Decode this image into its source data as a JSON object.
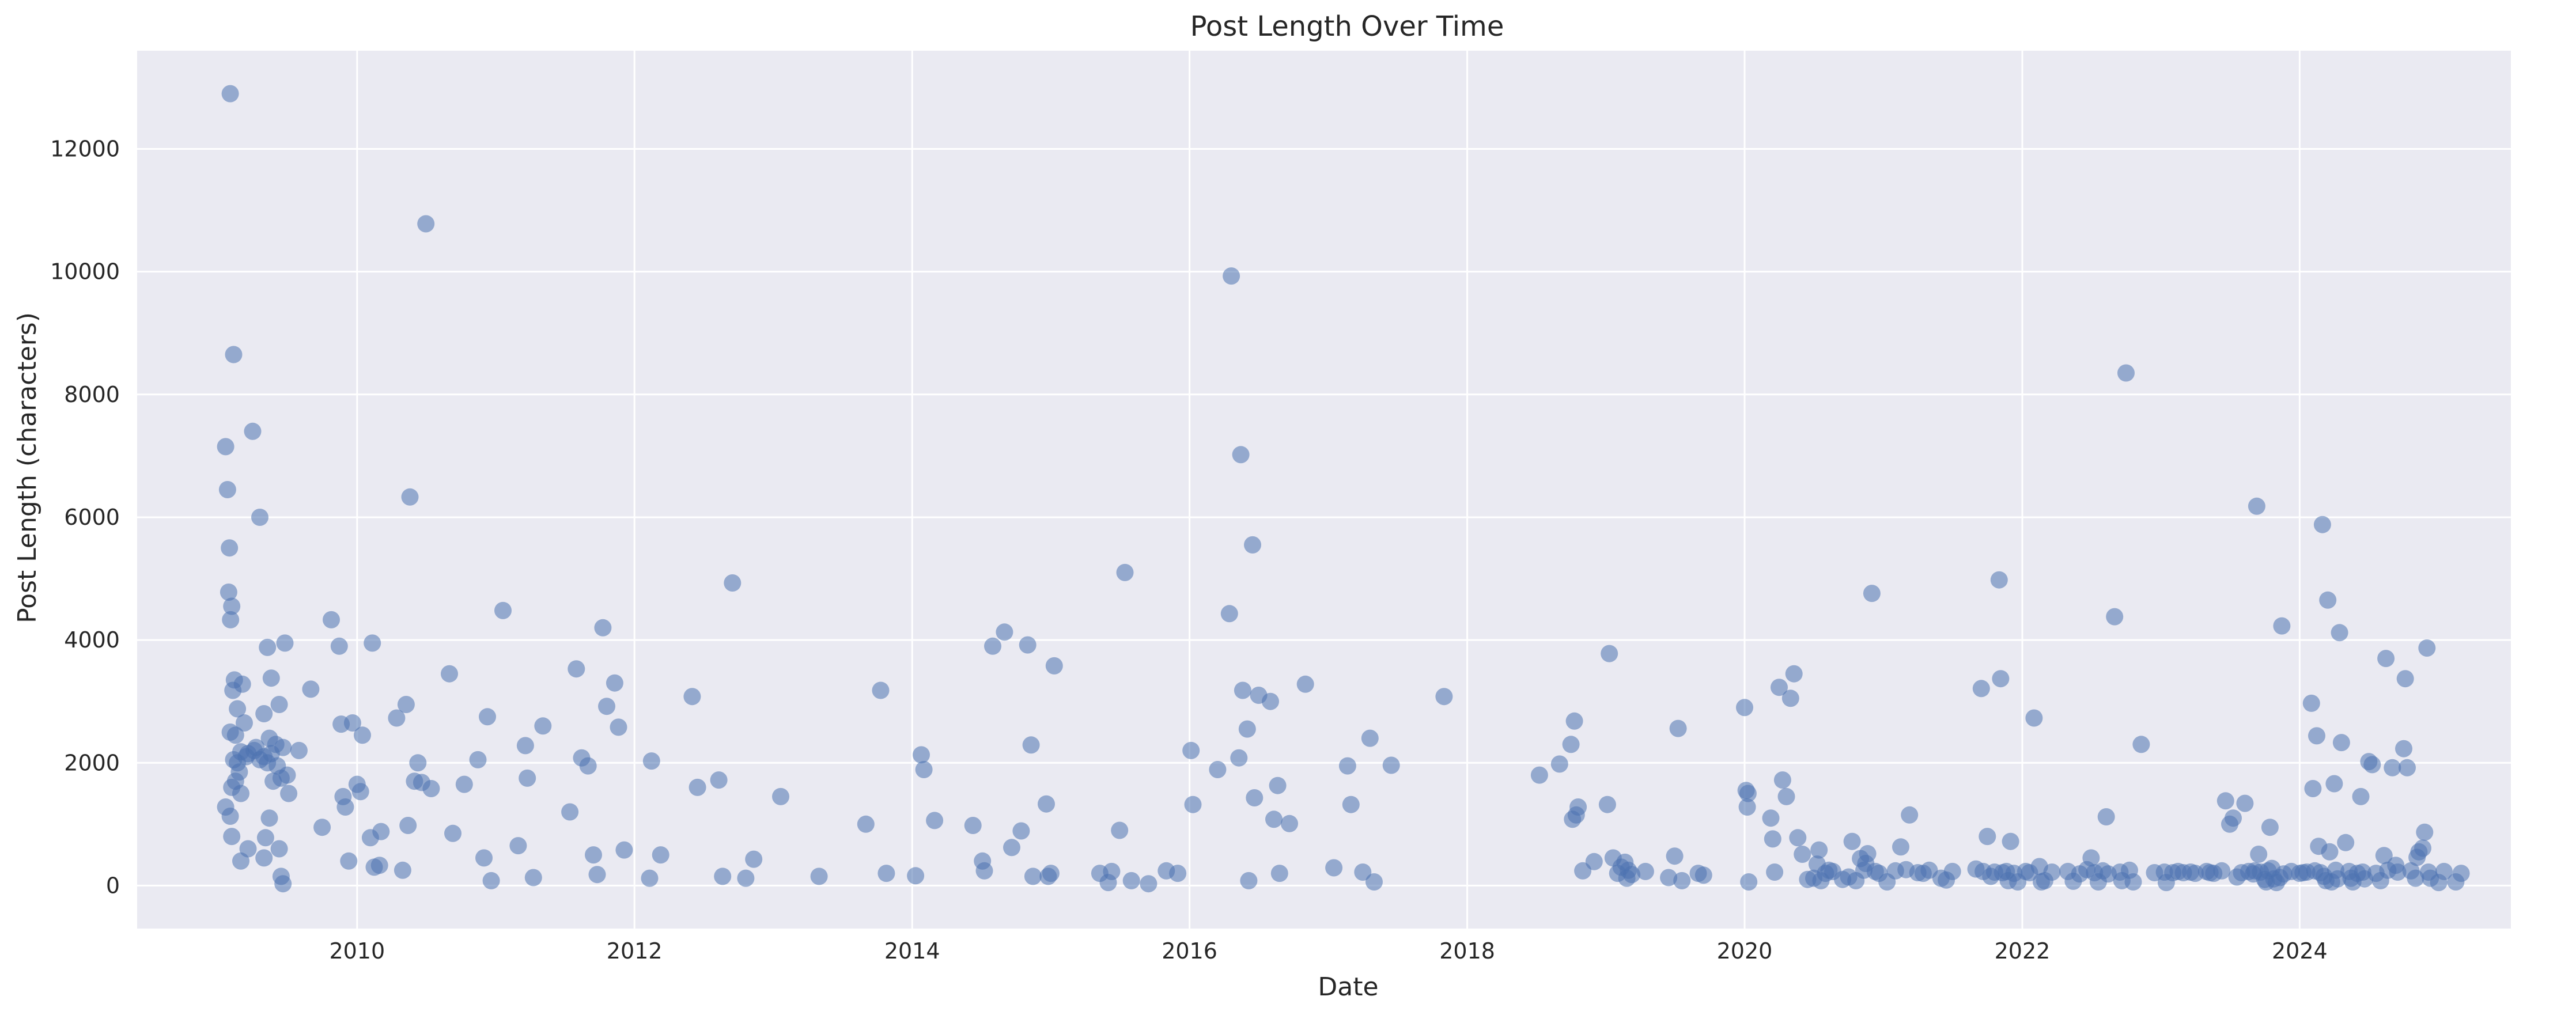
{
  "chart_data": {
    "type": "scatter",
    "title": "Post Length Over Time",
    "xlabel": "Date",
    "ylabel": "Post Length (characters)",
    "x_axis": "date",
    "xlim": [
      "2008-06-01",
      "2025-07-10"
    ],
    "ylim": [
      -700,
      13600
    ],
    "x_ticks": [
      "2010",
      "2012",
      "2014",
      "2016",
      "2018",
      "2020",
      "2022",
      "2024"
    ],
    "y_ticks": [
      0,
      2000,
      4000,
      6000,
      8000,
      10000,
      12000
    ],
    "grid": true,
    "legend": "none",
    "colors": {
      "point": "#4c72b0",
      "background": "#eaeaf2",
      "grid": "#ffffff"
    },
    "marker_alpha": 0.55,
    "points": [
      [
        "2009-02-01",
        12900
      ],
      [
        "2009-01-20",
        7150
      ],
      [
        "2009-01-25",
        6450
      ],
      [
        "2009-02-10",
        8650
      ],
      [
        "2009-04-01",
        7400
      ],
      [
        "2009-01-30",
        5500
      ],
      [
        "2009-04-20",
        6000
      ],
      [
        "2009-01-28",
        4780
      ],
      [
        "2009-02-05",
        4550
      ],
      [
        "2009-02-02",
        4330
      ],
      [
        "2009-02-12",
        3350
      ],
      [
        "2009-02-08",
        3180
      ],
      [
        "2009-03-05",
        3280
      ],
      [
        "2009-02-20",
        2880
      ],
      [
        "2009-03-10",
        2650
      ],
      [
        "2009-02-01",
        2500
      ],
      [
        "2009-02-15",
        2450
      ],
      [
        "2009-03-20",
        2150
      ],
      [
        "2009-03-01",
        2180
      ],
      [
        "2009-04-10",
        2250
      ],
      [
        "2009-02-10",
        2050
      ],
      [
        "2009-02-20",
        2000
      ],
      [
        "2009-03-15",
        2100
      ],
      [
        "2009-04-05",
        2200
      ],
      [
        "2009-04-20",
        2050
      ],
      [
        "2009-05-01",
        2100
      ],
      [
        "2009-02-25",
        1850
      ],
      [
        "2009-02-15",
        1700
      ],
      [
        "2009-02-05",
        1600
      ],
      [
        "2009-03-01",
        1500
      ],
      [
        "2009-01-20",
        1280
      ],
      [
        "2009-02-01",
        1130
      ],
      [
        "2009-02-05",
        800
      ],
      [
        "2009-03-20",
        600
      ],
      [
        "2009-03-01",
        400
      ],
      [
        "2009-05-10",
        3880
      ],
      [
        "2009-05-20",
        3380
      ],
      [
        "2009-06-10",
        2950
      ],
      [
        "2009-05-01",
        2800
      ],
      [
        "2009-05-15",
        2400
      ],
      [
        "2009-06-01",
        2300
      ],
      [
        "2009-06-20",
        2250
      ],
      [
        "2009-05-20",
        2150
      ],
      [
        "2009-05-10",
        2000
      ],
      [
        "2009-06-05",
        1950
      ],
      [
        "2009-07-01",
        1800
      ],
      [
        "2009-06-15",
        1750
      ],
      [
        "2009-05-25",
        1700
      ],
      [
        "2009-07-05",
        1500
      ],
      [
        "2009-05-15",
        1100
      ],
      [
        "2009-05-05",
        780
      ],
      [
        "2009-05-01",
        450
      ],
      [
        "2009-06-10",
        600
      ],
      [
        "2009-06-15",
        150
      ],
      [
        "2009-06-20",
        30
      ],
      [
        "2009-06-25",
        3950
      ],
      [
        "2009-08-01",
        2200
      ],
      [
        "2009-09-01",
        3200
      ],
      [
        "2009-10-01",
        950
      ],
      [
        "2009-10-25",
        4330
      ],
      [
        "2009-11-15",
        3900
      ],
      [
        "2009-11-20",
        2630
      ],
      [
        "2009-11-25",
        1450
      ],
      [
        "2009-12-01",
        1280
      ],
      [
        "2009-12-10",
        400
      ],
      [
        "2009-12-20",
        2650
      ],
      [
        "2010-01-01",
        1650
      ],
      [
        "2010-01-10",
        1530
      ],
      [
        "2010-01-15",
        2450
      ],
      [
        "2010-02-10",
        3950
      ],
      [
        "2010-02-05",
        780
      ],
      [
        "2010-02-15",
        300
      ],
      [
        "2010-03-01",
        330
      ],
      [
        "2010-03-05",
        880
      ],
      [
        "2010-04-15",
        2730
      ],
      [
        "2010-05-01",
        250
      ],
      [
        "2010-05-10",
        2950
      ],
      [
        "2010-05-15",
        980
      ],
      [
        "2010-05-20",
        6330
      ],
      [
        "2010-06-01",
        1700
      ],
      [
        "2010-06-10",
        2000
      ],
      [
        "2010-06-20",
        1680
      ],
      [
        "2010-07-01",
        10780
      ],
      [
        "2010-07-15",
        1580
      ],
      [
        "2010-09-01",
        3450
      ],
      [
        "2010-09-10",
        850
      ],
      [
        "2010-10-10",
        1650
      ],
      [
        "2010-11-15",
        2050
      ],
      [
        "2010-12-01",
        450
      ],
      [
        "2010-12-10",
        2750
      ],
      [
        "2010-12-20",
        80
      ],
      [
        "2011-01-20",
        4480
      ],
      [
        "2011-03-01",
        650
      ],
      [
        "2011-03-20",
        2280
      ],
      [
        "2011-03-25",
        1750
      ],
      [
        "2011-04-10",
        130
      ],
      [
        "2011-05-05",
        2600
      ],
      [
        "2011-07-15",
        1200
      ],
      [
        "2011-08-01",
        3530
      ],
      [
        "2011-08-15",
        2080
      ],
      [
        "2011-09-01",
        1950
      ],
      [
        "2011-09-15",
        500
      ],
      [
        "2011-09-25",
        180
      ],
      [
        "2011-10-10",
        4200
      ],
      [
        "2011-10-20",
        2920
      ],
      [
        "2011-11-10",
        3300
      ],
      [
        "2011-11-20",
        2580
      ],
      [
        "2011-12-05",
        580
      ],
      [
        "2012-02-15",
        2030
      ],
      [
        "2012-02-10",
        120
      ],
      [
        "2012-03-10",
        500
      ],
      [
        "2012-06-01",
        3080
      ],
      [
        "2012-06-15",
        1600
      ],
      [
        "2012-08-10",
        1720
      ],
      [
        "2012-08-20",
        150
      ],
      [
        "2012-09-15",
        4930
      ],
      [
        "2012-10-20",
        120
      ],
      [
        "2012-11-10",
        430
      ],
      [
        "2013-01-20",
        1450
      ],
      [
        "2013-05-01",
        150
      ],
      [
        "2013-09-01",
        1000
      ],
      [
        "2013-10-10",
        3180
      ],
      [
        "2013-10-25",
        200
      ],
      [
        "2014-01-10",
        160
      ],
      [
        "2014-01-25",
        2130
      ],
      [
        "2014-02-01",
        1890
      ],
      [
        "2014-03-01",
        1060
      ],
      [
        "2014-06-10",
        980
      ],
      [
        "2014-07-10",
        240
      ],
      [
        "2014-07-05",
        400
      ],
      [
        "2014-08-01",
        3900
      ],
      [
        "2014-09-01",
        4130
      ],
      [
        "2014-09-20",
        620
      ],
      [
        "2014-10-15",
        890
      ],
      [
        "2014-11-01",
        3920
      ],
      [
        "2014-11-10",
        2290
      ],
      [
        "2014-11-15",
        150
      ],
      [
        "2014-12-20",
        1330
      ],
      [
        "2014-12-25",
        150
      ],
      [
        "2015-01-01",
        200
      ],
      [
        "2015-01-10",
        3580
      ],
      [
        "2015-05-10",
        200
      ],
      [
        "2015-06-10",
        230
      ],
      [
        "2015-06-01",
        50
      ],
      [
        "2015-07-01",
        900
      ],
      [
        "2015-07-15",
        5100
      ],
      [
        "2015-08-01",
        80
      ],
      [
        "2015-09-15",
        30
      ],
      [
        "2015-11-01",
        240
      ],
      [
        "2015-12-01",
        200
      ],
      [
        "2016-01-05",
        2200
      ],
      [
        "2016-01-10",
        1320
      ],
      [
        "2016-03-15",
        1890
      ],
      [
        "2016-04-20",
        9930
      ],
      [
        "2016-04-15",
        4430
      ],
      [
        "2016-05-15",
        7020
      ],
      [
        "2016-05-20",
        3180
      ],
      [
        "2016-05-10",
        2080
      ],
      [
        "2016-06-01",
        2550
      ],
      [
        "2016-06-05",
        80
      ],
      [
        "2016-06-15",
        5550
      ],
      [
        "2016-06-20",
        1430
      ],
      [
        "2016-07-01",
        3100
      ],
      [
        "2016-08-01",
        3000
      ],
      [
        "2016-08-10",
        1080
      ],
      [
        "2016-08-20",
        1630
      ],
      [
        "2016-08-25",
        200
      ],
      [
        "2016-09-20",
        1010
      ],
      [
        "2016-11-01",
        3280
      ],
      [
        "2017-01-15",
        290
      ],
      [
        "2017-02-20",
        1950
      ],
      [
        "2017-03-01",
        1320
      ],
      [
        "2017-04-01",
        220
      ],
      [
        "2017-04-20",
        2400
      ],
      [
        "2017-05-01",
        60
      ],
      [
        "2017-06-15",
        1960
      ],
      [
        "2017-11-01",
        3080
      ],
      [
        "2018-07-10",
        1800
      ],
      [
        "2018-09-01",
        1980
      ],
      [
        "2018-10-01",
        2300
      ],
      [
        "2018-10-10",
        2680
      ],
      [
        "2018-10-20",
        1280
      ],
      [
        "2018-10-15",
        1150
      ],
      [
        "2018-10-05",
        1080
      ],
      [
        "2018-11-01",
        240
      ],
      [
        "2018-12-01",
        390
      ],
      [
        "2019-01-05",
        1320
      ],
      [
        "2019-01-10",
        3780
      ],
      [
        "2019-01-20",
        450
      ],
      [
        "2019-02-01",
        200
      ],
      [
        "2019-02-10",
        300
      ],
      [
        "2019-02-20",
        380
      ],
      [
        "2019-02-25",
        120
      ],
      [
        "2019-03-01",
        250
      ],
      [
        "2019-03-10",
        180
      ],
      [
        "2019-04-15",
        230
      ],
      [
        "2019-06-15",
        130
      ],
      [
        "2019-07-01",
        480
      ],
      [
        "2019-07-10",
        2560
      ],
      [
        "2019-07-20",
        80
      ],
      [
        "2019-09-01",
        200
      ],
      [
        "2019-09-15",
        170
      ],
      [
        "2020-01-01",
        2900
      ],
      [
        "2020-01-05",
        1550
      ],
      [
        "2020-01-10",
        1500
      ],
      [
        "2020-01-08",
        1280
      ],
      [
        "2020-01-12",
        60
      ],
      [
        "2020-03-10",
        1100
      ],
      [
        "2020-03-15",
        760
      ],
      [
        "2020-03-20",
        220
      ],
      [
        "2020-04-01",
        3230
      ],
      [
        "2020-04-10",
        1720
      ],
      [
        "2020-04-20",
        1450
      ],
      [
        "2020-05-01",
        3050
      ],
      [
        "2020-05-10",
        3450
      ],
      [
        "2020-05-20",
        780
      ],
      [
        "2020-06-01",
        510
      ],
      [
        "2020-06-15",
        100
      ],
      [
        "2020-07-01",
        120
      ],
      [
        "2020-07-10",
        350
      ],
      [
        "2020-07-15",
        580
      ],
      [
        "2020-07-20",
        80
      ],
      [
        "2020-08-01",
        200
      ],
      [
        "2020-08-10",
        250
      ],
      [
        "2020-08-20",
        230
      ],
      [
        "2020-09-15",
        100
      ],
      [
        "2020-10-01",
        140
      ],
      [
        "2020-10-10",
        720
      ],
      [
        "2020-10-20",
        80
      ],
      [
        "2020-11-01",
        440
      ],
      [
        "2020-11-10",
        250
      ],
      [
        "2020-11-15",
        360
      ],
      [
        "2020-11-20",
        520
      ],
      [
        "2020-12-01",
        4760
      ],
      [
        "2020-12-10",
        230
      ],
      [
        "2020-12-20",
        200
      ],
      [
        "2021-01-10",
        60
      ],
      [
        "2021-02-01",
        240
      ],
      [
        "2021-02-15",
        630
      ],
      [
        "2021-03-01",
        260
      ],
      [
        "2021-03-10",
        1150
      ],
      [
        "2021-04-01",
        210
      ],
      [
        "2021-04-15",
        200
      ],
      [
        "2021-05-01",
        250
      ],
      [
        "2021-06-01",
        120
      ],
      [
        "2021-06-15",
        90
      ],
      [
        "2021-07-01",
        230
      ],
      [
        "2021-09-01",
        270
      ],
      [
        "2021-09-15",
        3210
      ],
      [
        "2021-09-20",
        230
      ],
      [
        "2021-10-01",
        800
      ],
      [
        "2021-10-10",
        150
      ],
      [
        "2021-10-20",
        220
      ],
      [
        "2021-11-01",
        4980
      ],
      [
        "2021-11-05",
        3370
      ],
      [
        "2021-11-10",
        210
      ],
      [
        "2021-11-20",
        230
      ],
      [
        "2021-11-25",
        80
      ],
      [
        "2021-12-01",
        720
      ],
      [
        "2021-12-10",
        200
      ],
      [
        "2021-12-20",
        60
      ],
      [
        "2022-01-10",
        230
      ],
      [
        "2022-01-20",
        210
      ],
      [
        "2022-02-01",
        2730
      ],
      [
        "2022-02-15",
        310
      ],
      [
        "2022-02-20",
        60
      ],
      [
        "2022-03-01",
        80
      ],
      [
        "2022-03-20",
        220
      ],
      [
        "2022-05-01",
        230
      ],
      [
        "2022-05-15",
        70
      ],
      [
        "2022-06-01",
        190
      ],
      [
        "2022-06-20",
        260
      ],
      [
        "2022-07-01",
        450
      ],
      [
        "2022-07-10",
        210
      ],
      [
        "2022-07-20",
        60
      ],
      [
        "2022-08-01",
        240
      ],
      [
        "2022-08-10",
        1120
      ],
      [
        "2022-08-15",
        190
      ],
      [
        "2022-09-01",
        4380
      ],
      [
        "2022-09-15",
        220
      ],
      [
        "2022-09-20",
        80
      ],
      [
        "2022-10-01",
        8350
      ],
      [
        "2022-10-10",
        250
      ],
      [
        "2022-10-20",
        60
      ],
      [
        "2022-11-10",
        2300
      ],
      [
        "2022-12-15",
        210
      ],
      [
        "2023-01-10",
        220
      ],
      [
        "2023-01-15",
        50
      ],
      [
        "2023-02-01",
        210
      ],
      [
        "2023-02-15",
        230
      ],
      [
        "2023-03-01",
        210
      ],
      [
        "2023-03-20",
        220
      ],
      [
        "2023-04-01",
        200
      ],
      [
        "2023-05-01",
        230
      ],
      [
        "2023-05-10",
        210
      ],
      [
        "2023-05-20",
        200
      ],
      [
        "2023-06-10",
        240
      ],
      [
        "2023-06-20",
        1380
      ],
      [
        "2023-07-01",
        1000
      ],
      [
        "2023-07-10",
        1100
      ],
      [
        "2023-07-20",
        140
      ],
      [
        "2023-08-01",
        210
      ],
      [
        "2023-08-10",
        1340
      ],
      [
        "2023-08-20",
        230
      ],
      [
        "2023-09-01",
        190
      ],
      [
        "2023-09-05",
        240
      ],
      [
        "2023-09-10",
        6180
      ],
      [
        "2023-09-15",
        510
      ],
      [
        "2023-09-20",
        220
      ],
      [
        "2023-10-01",
        100
      ],
      [
        "2023-10-05",
        60
      ],
      [
        "2023-10-10",
        240
      ],
      [
        "2023-10-15",
        950
      ],
      [
        "2023-10-20",
        280
      ],
      [
        "2023-10-25",
        110
      ],
      [
        "2023-11-01",
        50
      ],
      [
        "2023-11-10",
        130
      ],
      [
        "2023-11-15",
        4230
      ],
      [
        "2023-11-20",
        190
      ],
      [
        "2023-12-10",
        230
      ],
      [
        "2024-01-01",
        200
      ],
      [
        "2024-01-10",
        210
      ],
      [
        "2024-01-20",
        220
      ],
      [
        "2024-02-01",
        2970
      ],
      [
        "2024-02-05",
        1580
      ],
      [
        "2024-02-10",
        240
      ],
      [
        "2024-02-15",
        2440
      ],
      [
        "2024-02-20",
        640
      ],
      [
        "2024-02-25",
        210
      ],
      [
        "2024-03-01",
        5880
      ],
      [
        "2024-03-05",
        150
      ],
      [
        "2024-03-10",
        80
      ],
      [
        "2024-03-15",
        4650
      ],
      [
        "2024-03-20",
        550
      ],
      [
        "2024-03-25",
        60
      ],
      [
        "2024-04-01",
        1660
      ],
      [
        "2024-04-05",
        250
      ],
      [
        "2024-04-10",
        110
      ],
      [
        "2024-04-15",
        4120
      ],
      [
        "2024-04-20",
        2330
      ],
      [
        "2024-05-01",
        700
      ],
      [
        "2024-05-10",
        230
      ],
      [
        "2024-05-15",
        120
      ],
      [
        "2024-05-20",
        60
      ],
      [
        "2024-06-01",
        200
      ],
      [
        "2024-06-10",
        1450
      ],
      [
        "2024-06-15",
        220
      ],
      [
        "2024-06-20",
        110
      ],
      [
        "2024-07-01",
        2020
      ],
      [
        "2024-07-10",
        1970
      ],
      [
        "2024-07-20",
        200
      ],
      [
        "2024-08-01",
        80
      ],
      [
        "2024-08-10",
        490
      ],
      [
        "2024-08-15",
        3700
      ],
      [
        "2024-08-20",
        250
      ],
      [
        "2024-09-01",
        1920
      ],
      [
        "2024-09-10",
        330
      ],
      [
        "2024-09-15",
        220
      ],
      [
        "2024-10-01",
        2230
      ],
      [
        "2024-10-05",
        3370
      ],
      [
        "2024-10-10",
        1920
      ],
      [
        "2024-10-20",
        240
      ],
      [
        "2024-11-01",
        120
      ],
      [
        "2024-11-05",
        460
      ],
      [
        "2024-11-10",
        550
      ],
      [
        "2024-11-20",
        610
      ],
      [
        "2024-11-25",
        870
      ],
      [
        "2024-12-01",
        3870
      ],
      [
        "2024-12-05",
        220
      ],
      [
        "2024-12-10",
        120
      ],
      [
        "2025-01-01",
        50
      ],
      [
        "2025-01-15",
        230
      ],
      [
        "2025-02-15",
        60
      ],
      [
        "2025-03-01",
        200
      ]
    ]
  }
}
